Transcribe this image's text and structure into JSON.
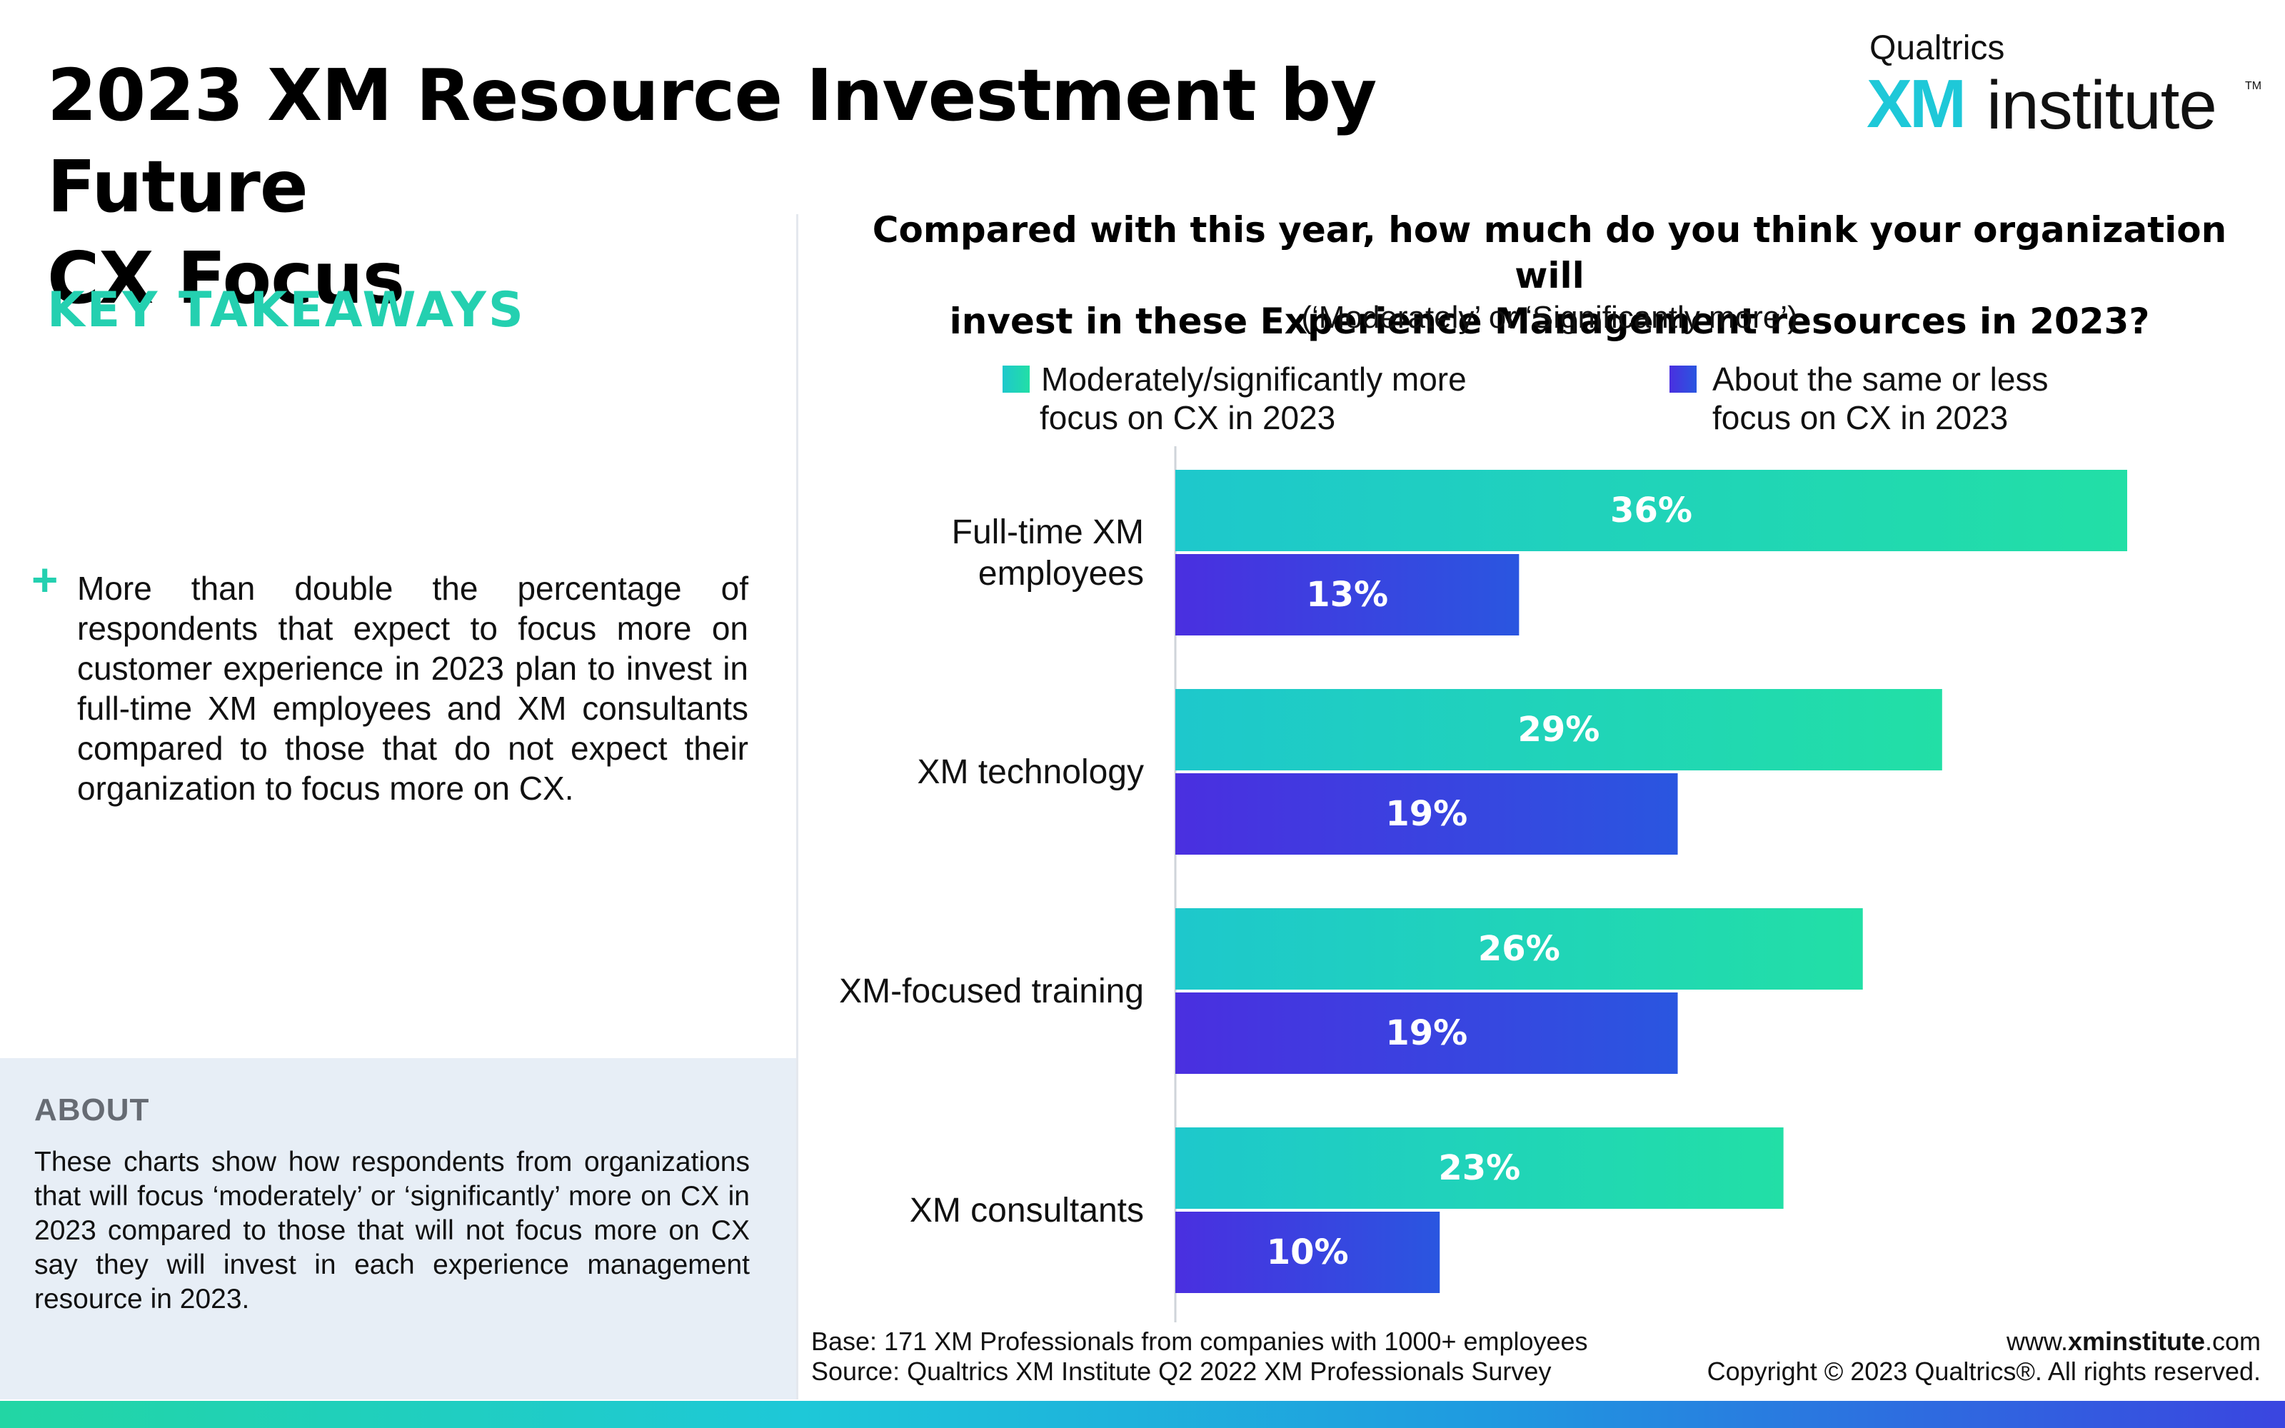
{
  "page": {
    "title_line1": "2023 XM Resource Investment by Future",
    "title_line2": "CX Focus",
    "logo": {
      "brand": "Qualtrics",
      "xm": "XM",
      "institute": "institute",
      "tm": "TM"
    },
    "key_takeaways_heading": "KEY TAKEAWAYS",
    "takeaway_bullet": "+",
    "takeaway_text": "More than double the percentage of respondents that expect to focus more on customer experience in 2023 plan to invest in full-time XM employees and XM consultants compared to those that do not expect their organization to focus more on CX.",
    "about_heading": "ABOUT",
    "about_text": "These charts show how respondents from organizations that will focus ‘moderately’ or ‘significantly’ more on CX in 2023 compared to those that will not focus more on CX say they will invest in each experience management resource in 2023.",
    "footer": {
      "base": "Base: 171 XM Professionals from companies with 1000+ employees",
      "source": "Source: Qualtrics XM Institute Q2 2022 XM Professionals Survey",
      "url_prefix": "www.",
      "url_bold": "xminstitute",
      "url_suffix": ".com",
      "copyright": "Copyright © 2023 Qualtrics®. All rights reserved."
    }
  },
  "chart_data": {
    "type": "bar",
    "orientation": "horizontal",
    "title_line1": "Compared with this year, how much do you think your organization will",
    "title_line2": "invest in these Experience Management resources in 2023?",
    "subtitle": "(‘Moderately’ or ‘Significantly more’)",
    "categories": [
      [
        "Full-time XM",
        "employees"
      ],
      [
        "XM technology"
      ],
      [
        "XM-focused training"
      ],
      [
        "XM consultants"
      ]
    ],
    "series": [
      {
        "name_line1": "Moderately/significantly more",
        "name_line2": "focus on CX in 2023",
        "values": [
          36,
          29,
          26,
          23
        ],
        "value_labels": [
          "36%",
          "29%",
          "26%",
          "23%"
        ],
        "color_start": "#1ec8cc",
        "color_end": "#22dfa6"
      },
      {
        "name_line1": "About the same or less",
        "name_line2": "focus on CX in 2023",
        "values": [
          13,
          19,
          19,
          10
        ],
        "value_labels": [
          "13%",
          "19%",
          "19%",
          "10%"
        ],
        "color_start": "#4a2fe0",
        "color_end": "#2a56e0"
      }
    ],
    "xlim": [
      0,
      40
    ],
    "grid": false,
    "legend_position": "top"
  }
}
